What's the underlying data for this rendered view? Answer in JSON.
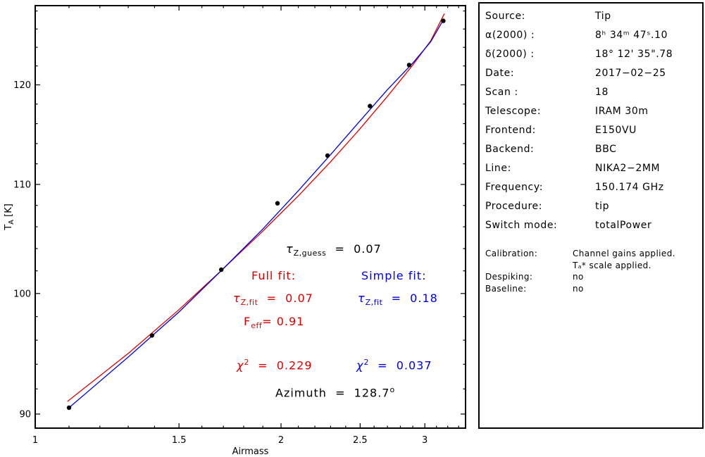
{
  "colors": {
    "red": "#dd0000",
    "blue": "#0000dd",
    "black": "#000000",
    "background": "#ffffff"
  },
  "chart_data": {
    "type": "scatter",
    "title": "",
    "xlabel": "Airmass",
    "ylabel_parts": {
      "sym": "T",
      "sub": "A",
      "rest": " [K]"
    },
    "x_scale": "log",
    "y_scale": "log",
    "xlim": [
      1.0,
      3.365
    ],
    "ylim": [
      88.9,
      128.6
    ],
    "x_ticks": [
      {
        "v": 1,
        "label": "1"
      },
      {
        "v": 1.5,
        "label": "1.5"
      },
      {
        "v": 2,
        "label": "2"
      },
      {
        "v": 2.5,
        "label": "2.5"
      },
      {
        "v": 3,
        "label": "3"
      }
    ],
    "x_minor": {
      "start": 1.1,
      "end": 3.3,
      "step": 0.1
    },
    "y_ticks": [
      {
        "v": 90,
        "label": "90"
      },
      {
        "v": 100,
        "label": "100"
      },
      {
        "v": 110,
        "label": "110"
      },
      {
        "v": 120,
        "label": "120"
      }
    ],
    "y_minor": {
      "start": 92,
      "end": 128,
      "step": 2
    },
    "points": [
      [
        1.1,
        90.5
      ],
      [
        1.39,
        96.4
      ],
      [
        1.69,
        102.1
      ],
      [
        1.98,
        108.2
      ],
      [
        2.28,
        112.8
      ],
      [
        2.57,
        117.8
      ],
      [
        2.87,
        122.1
      ],
      [
        3.16,
        126.9
      ]
    ],
    "fits": [
      {
        "name": "Full fit",
        "color": "#dd0000",
        "points": [
          [
            1.095,
            91.0
          ],
          [
            1.3,
            94.9
          ],
          [
            1.5,
            98.6
          ],
          [
            1.7,
            102.2
          ],
          [
            1.9,
            105.6
          ],
          [
            2.1,
            108.9
          ],
          [
            2.3,
            112.2
          ],
          [
            2.5,
            115.5
          ],
          [
            2.7,
            118.8
          ],
          [
            2.9,
            122.1
          ],
          [
            3.05,
            124.7
          ],
          [
            3.17,
            127.7
          ]
        ]
      },
      {
        "name": "Simple fit",
        "color": "#0000dd",
        "points": [
          [
            1.1,
            90.5
          ],
          [
            1.3,
            94.6
          ],
          [
            1.5,
            98.4
          ],
          [
            1.7,
            102.2
          ],
          [
            1.9,
            105.8
          ],
          [
            2.1,
            109.4
          ],
          [
            2.3,
            112.9
          ],
          [
            2.5,
            116.3
          ],
          [
            2.7,
            119.5
          ],
          [
            2.9,
            122.3
          ],
          [
            3.05,
            124.6
          ],
          [
            3.16,
            127.0
          ]
        ]
      }
    ],
    "grid": false,
    "legend_position": "none"
  },
  "annotations": {
    "tau_guess": {
      "sym": "τ",
      "sub": "Z,guess",
      "eq": "  =  0.07"
    },
    "full_fit": {
      "label": "Full fit:"
    },
    "simple_fit": {
      "label": "Simple fit:"
    },
    "tau_fit_red": {
      "sym": "τ",
      "sub": "Z,fit",
      "eq": "  =  0.07"
    },
    "tau_fit_blue": {
      "sym": "τ",
      "sub": "Z,fit",
      "eq": "  =  0.18"
    },
    "feff": {
      "sym": "F",
      "sub": "eff",
      "eq": "= 0.91"
    },
    "chi2_red": {
      "sym": "χ",
      "sup": "2",
      "eq": "  =  0.229"
    },
    "chi2_blue": {
      "sym": "χ",
      "sup": "2",
      "eq": "  =  0.037"
    },
    "azimuth": {
      "text": "Azimuth  =  128.7",
      "sup": "o"
    }
  },
  "panel": {
    "rows": [
      {
        "label": "Source:",
        "value": "Tip"
      },
      {
        "label": "α(2000) :",
        "value": "8ʰ 34ᵐ 47ˢ.10"
      },
      {
        "label": "δ(2000) :",
        "value": "18° 12' 35\".78"
      },
      {
        "label": "Date:",
        "value": "2017−02−25"
      },
      {
        "label": "Scan :",
        "value": "18"
      },
      {
        "label": "Telescope:",
        "value": "IRAM 30m"
      },
      {
        "label": "Frontend:",
        "value": "E150VU"
      },
      {
        "label": "Backend:",
        "value": "BBC"
      },
      {
        "label": "Line:",
        "value": "NIKA2−2MM"
      },
      {
        "label": "Frequency:",
        "value": "150.174 GHz"
      },
      {
        "label": "Procedure:",
        "value": "tip"
      },
      {
        "label": "Switch mode:",
        "value": "totalPower"
      }
    ],
    "calibration": {
      "label": "Calibration:",
      "line1": "Channel gains applied.",
      "line2": "Tₐ* scale applied."
    },
    "despiking": {
      "label": "Despiking:",
      "value": "no"
    },
    "baseline": {
      "label": "Baseline:",
      "value": "no"
    }
  }
}
